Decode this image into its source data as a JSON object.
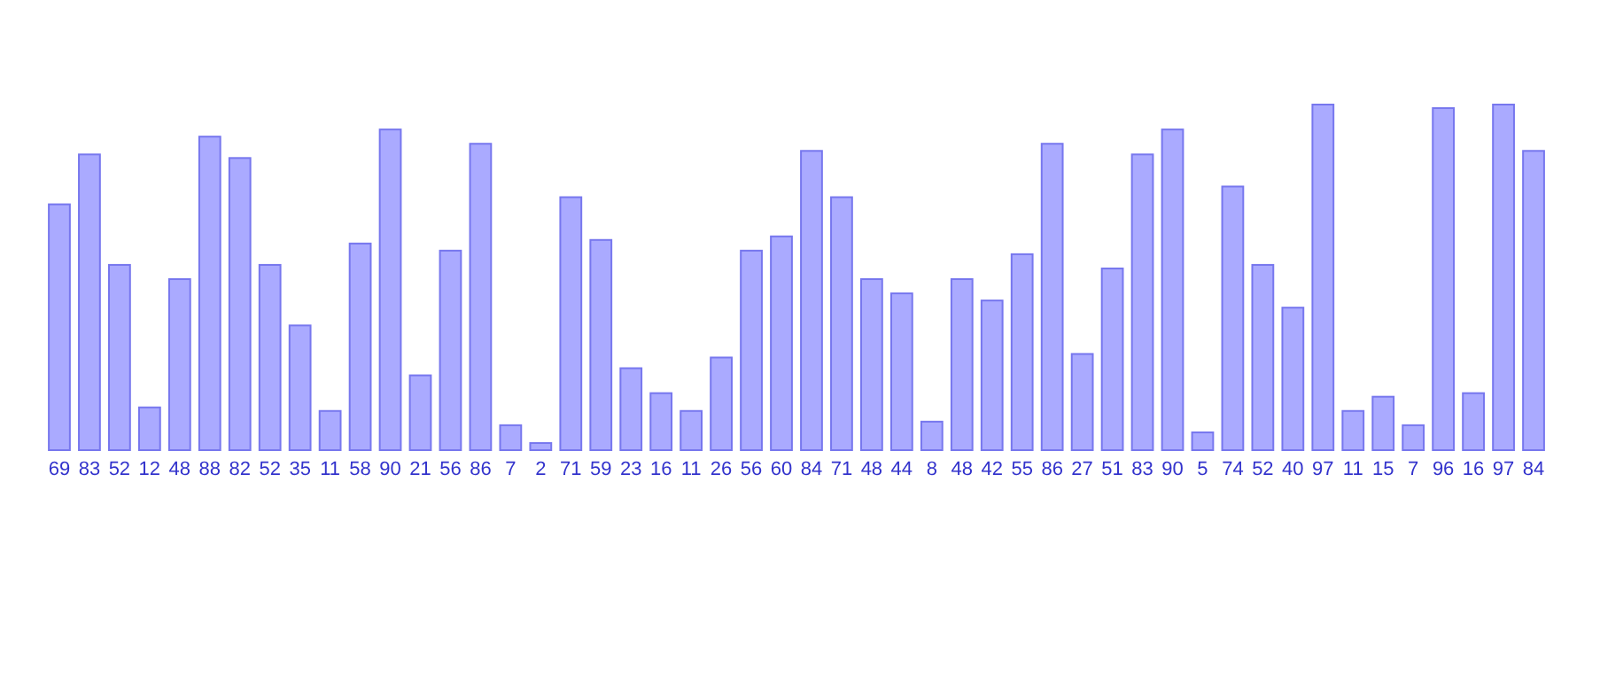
{
  "chart_data": {
    "type": "bar",
    "categories": [
      null,
      null,
      null,
      null,
      null,
      null,
      null,
      null,
      null,
      null,
      null,
      null,
      null,
      null,
      null,
      null,
      null,
      null,
      null,
      null,
      null,
      null,
      null,
      null,
      null,
      null,
      null,
      null,
      null,
      null,
      null,
      null,
      null,
      null,
      null,
      null,
      null,
      null,
      null,
      null,
      null,
      null,
      null,
      null,
      null,
      null,
      null,
      null,
      null,
      null
    ],
    "values": [
      69,
      83,
      52,
      12,
      48,
      88,
      82,
      52,
      35,
      11,
      58,
      90,
      21,
      56,
      86,
      7,
      2,
      71,
      59,
      23,
      16,
      11,
      26,
      56,
      60,
      84,
      71,
      48,
      44,
      8,
      48,
      42,
      55,
      86,
      27,
      51,
      83,
      90,
      5,
      74,
      52,
      40,
      97,
      11,
      15,
      7,
      96,
      16,
      97,
      84
    ],
    "color": "#aaaaff",
    "data_labels": true
  }
}
